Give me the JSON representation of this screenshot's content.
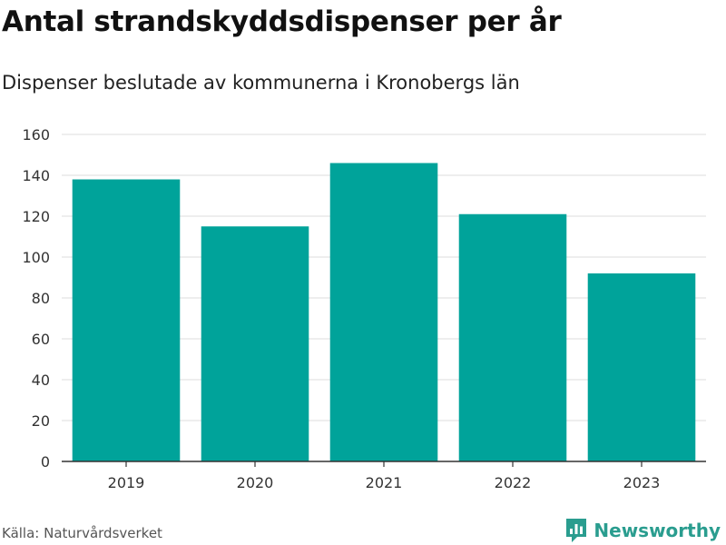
{
  "chart_data": {
    "type": "bar",
    "title": "Antal strandskyddsdispenser per år",
    "subtitle": "Dispenser beslutade av kommunerna i Kronobergs län",
    "categories": [
      "2019",
      "2020",
      "2021",
      "2022",
      "2023"
    ],
    "values": [
      138,
      115,
      146,
      121,
      92
    ],
    "xlabel": "",
    "ylabel": "",
    "ylim": [
      0,
      160
    ],
    "yticks": [
      0,
      20,
      40,
      60,
      80,
      100,
      120,
      140,
      160
    ],
    "grid": true,
    "bar_color": "#00a39a"
  },
  "footer": {
    "source": "Källa: Naturvårdsverket",
    "brand": "Newsworthy",
    "brand_icon": "bar-chart-icon",
    "brand_color": "#2a9d8f"
  }
}
